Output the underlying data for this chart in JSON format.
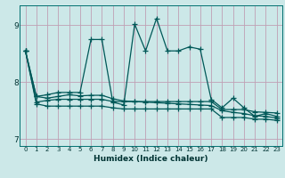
{
  "xlabel": "Humidex (Indice chaleur)",
  "bg_color": "#cce8e8",
  "grid_color": "#c0a0b4",
  "line_color": "#005858",
  "xlim_min": -0.5,
  "xlim_max": 23.5,
  "ylim_min": 6.88,
  "ylim_max": 9.35,
  "xtick_labels": [
    "0",
    "1",
    "2",
    "3",
    "4",
    "5",
    "6",
    "7",
    "8",
    "9",
    "10",
    "11",
    "12",
    "13",
    "14",
    "15",
    "16",
    "17",
    "18",
    "19",
    "20",
    "21",
    "22",
    "23"
  ],
  "ytick_values": [
    7,
    8,
    9
  ],
  "series": [
    [
      8.55,
      7.75,
      7.78,
      7.82,
      7.82,
      7.82,
      8.75,
      8.75,
      7.65,
      7.6,
      9.02,
      8.55,
      9.12,
      8.55,
      8.55,
      8.62,
      8.58,
      7.7,
      7.55,
      7.72,
      7.55,
      7.4,
      7.45,
      7.4
    ],
    [
      8.55,
      7.62,
      7.58,
      7.58,
      7.58,
      7.58,
      7.58,
      7.58,
      7.55,
      7.53,
      7.53,
      7.53,
      7.53,
      7.53,
      7.53,
      7.53,
      7.53,
      7.53,
      7.38,
      7.38,
      7.38,
      7.35,
      7.35,
      7.33
    ],
    [
      8.55,
      7.65,
      7.68,
      7.7,
      7.7,
      7.7,
      7.7,
      7.7,
      7.66,
      7.66,
      7.66,
      7.66,
      7.66,
      7.66,
      7.66,
      7.66,
      7.66,
      7.66,
      7.52,
      7.52,
      7.52,
      7.48,
      7.47,
      7.46
    ],
    [
      8.55,
      7.75,
      7.72,
      7.75,
      7.78,
      7.76,
      7.77,
      7.77,
      7.71,
      7.67,
      7.66,
      7.65,
      7.64,
      7.63,
      7.62,
      7.61,
      7.6,
      7.59,
      7.5,
      7.47,
      7.45,
      7.41,
      7.4,
      7.37
    ]
  ],
  "marker": "+",
  "markersize": 4,
  "linewidth": 0.9,
  "tick_fontsize": 5,
  "xlabel_fontsize": 6.5
}
